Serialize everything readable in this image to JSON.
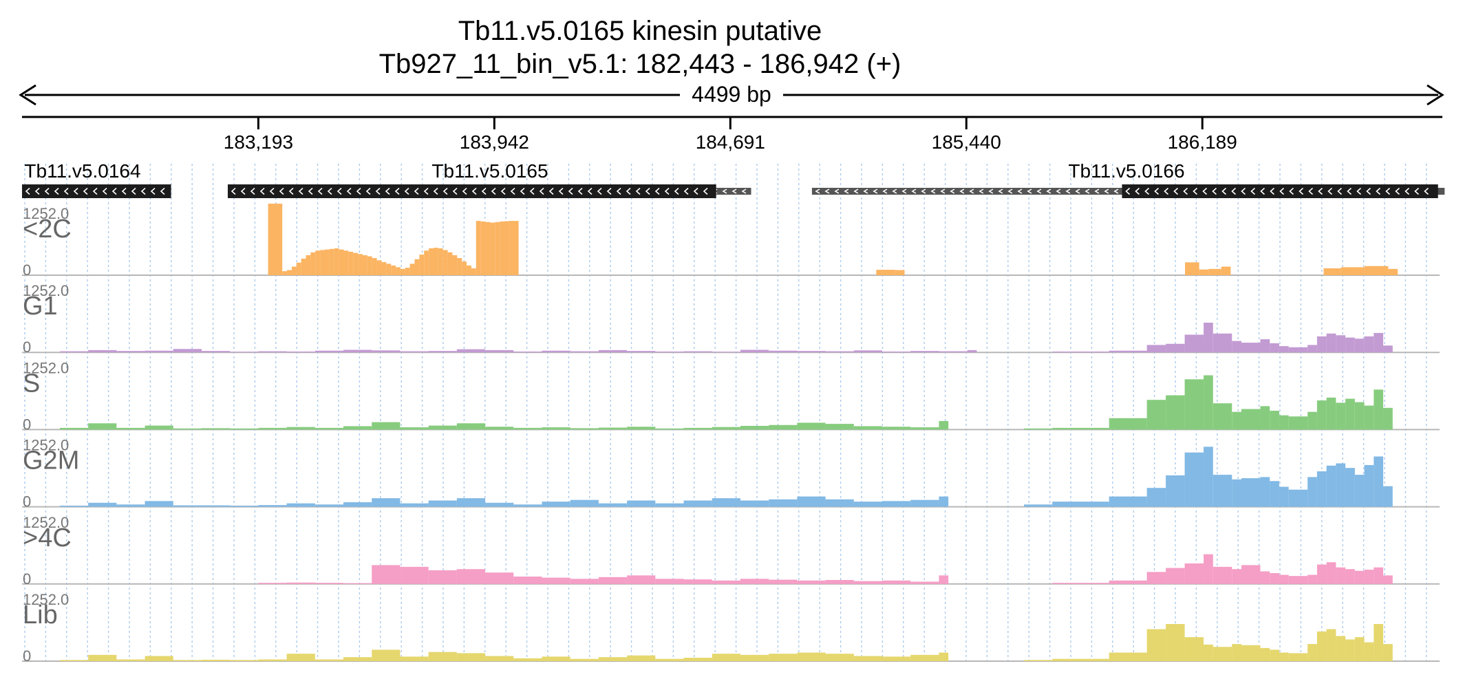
{
  "title": {
    "gene_line": "Tb11.v5.0165  kinesin  putative",
    "locus_line": "Tb927_11_bin_v5.1: 182,443 - 186,942 (+)",
    "span_label": "4499 bp"
  },
  "chart_data": {
    "type": "area",
    "subtype": "genome-browser coverage tracks",
    "chromosome": "Tb927_11_bin_v5.1",
    "x_range": [
      182443,
      186942
    ],
    "x_ticks": [
      183193,
      183942,
      184691,
      185440,
      186189
    ],
    "x_tick_labels": [
      "183,193",
      "183,942",
      "184,691",
      "185,440",
      "186,189"
    ],
    "grid": true,
    "genes": [
      {
        "name": "Tb11.v5.0164",
        "start": 182443,
        "end": 182916,
        "strand": "-",
        "label": "Tb11.v5.0164"
      },
      {
        "name": "Tb11.v5.0165",
        "start": 183096,
        "end": 184646,
        "utr_end": 184757,
        "strand": "-",
        "label": "Tb11.v5.0165"
      },
      {
        "name": "Tb11.v5.0166",
        "start": 185934,
        "end": 186937,
        "utr_start": 184950,
        "utr_end": 186958,
        "strand": "-",
        "label": "Tb11.v5.0166"
      }
    ],
    "bin_width": 15,
    "ylim": [
      0,
      1252.0
    ],
    "series": [
      {
        "name": "<2C",
        "color": "#fbb462",
        "ymax_label": "1252.0",
        "ymin_label": "0",
        "segments": [
          {
            "x": [
              183224,
              183269,
              183284,
              183299,
              183314,
              183329,
              183344,
              183359,
              183374,
              183389,
              183404,
              183419,
              183434,
              183449,
              183464,
              183479,
              183494,
              183509,
              183524,
              183539,
              183554,
              183569,
              183584,
              183599,
              183614,
              183629,
              183644,
              183659,
              183674,
              183689,
              183704,
              183719,
              183734,
              183749,
              183764,
              183779,
              183794,
              183809,
              183824,
              183839,
              183854,
              183869,
              183884,
              183899,
              183914,
              183929,
              183944,
              183959,
              183974,
              183989
            ],
            "y": [
              1252,
              70,
              90,
              150,
              220,
              290,
              350,
              400,
              430,
              440,
              450,
              460,
              470,
              450,
              430,
              410,
              390,
              370,
              350,
              330,
              300,
              260,
              230,
              200,
              170,
              140,
              110,
              130,
              200,
              280,
              360,
              430,
              470,
              480,
              470,
              440,
              400,
              350,
              300,
              240,
              170,
              120,
              950,
              940,
              930,
              920,
              930,
              940,
              945,
              950
            ]
          },
          {
            "x": [
              185154,
              185214
            ],
            "y": [
              95,
              90
            ]
          },
          {
            "x": [
              186134,
              186179,
              186209,
              186249
            ],
            "y": [
              225,
              100,
              110,
              150
            ]
          },
          {
            "x": [
              186574,
              186629,
              186704,
              186779
            ],
            "y": [
              120,
              140,
              160,
              110
            ]
          }
        ]
      },
      {
        "name": "G1",
        "color": "#c39bd3",
        "ymax_label": "1252.0",
        "ymin_label": "0",
        "segments": [
          {
            "x": [
              182563,
              182653,
              182743,
              182833,
              182923,
              183013,
              183103,
              183193,
              183283,
              183373,
              183463,
              183553,
              183643,
              183733,
              183823,
              183913,
              184003,
              184093,
              184183,
              184273,
              184363,
              184453,
              184543,
              184633,
              184723,
              184813,
              184903,
              184993,
              185083,
              185173,
              185263,
              185353,
              185443
            ],
            "y": [
              20,
              40,
              25,
              30,
              60,
              25,
              10,
              20,
              15,
              30,
              45,
              35,
              20,
              25,
              55,
              40,
              15,
              30,
              20,
              40,
              25,
              15,
              20,
              10,
              45,
              30,
              25,
              20,
              35,
              15,
              25,
              20,
              40
            ]
          },
          {
            "x": [
              185713,
              185893,
              186013,
              186073,
              186133,
              186193,
              186223,
              186283,
              186313,
              186373,
              186403,
              186433,
              186463,
              186523,
              186553,
              186583,
              186613,
              186643,
              186673,
              186703,
              186733,
              186763
            ],
            "y": [
              15,
              30,
              130,
              150,
              310,
              520,
              330,
              200,
              170,
              230,
              160,
              110,
              90,
              130,
              280,
              330,
              300,
              260,
              240,
              280,
              340,
              120
            ]
          }
        ]
      },
      {
        "name": "S",
        "color": "#87cc7e",
        "ymax_label": "1252.0",
        "ymin_label": "0",
        "segments": [
          {
            "x": [
              182563,
              182653,
              182743,
              182833,
              182923,
              183013,
              183103,
              183193,
              183283,
              183373,
              183463,
              183553,
              183643,
              183733,
              183823,
              183913,
              184003,
              184093,
              184183,
              184273,
              184363,
              184453,
              184543,
              184633,
              184723,
              184813,
              184903,
              184993,
              185083,
              185173,
              185263,
              185353
            ],
            "y": [
              30,
              110,
              30,
              70,
              20,
              25,
              20,
              30,
              45,
              30,
              60,
              130,
              40,
              70,
              110,
              50,
              30,
              40,
              25,
              35,
              50,
              20,
              30,
              45,
              65,
              80,
              120,
              100,
              60,
              50,
              40,
              150
            ]
          },
          {
            "x": [
              185623,
              185713,
              185893,
              186013,
              186073,
              186133,
              186193,
              186223,
              186283,
              186313,
              186373,
              186403,
              186433,
              186463,
              186523,
              186553,
              186583,
              186613,
              186643,
              186673,
              186703,
              186733,
              186763
            ],
            "y": [
              20,
              30,
              200,
              520,
              600,
              880,
              950,
              460,
              310,
              360,
              410,
              330,
              250,
              230,
              310,
              510,
              560,
              470,
              540,
              480,
              420,
              700,
              380
            ]
          }
        ]
      },
      {
        "name": "G2M",
        "color": "#82b9e5",
        "ymax_label": "1252.0",
        "ymin_label": "0",
        "segments": [
          {
            "x": [
              182563,
              182653,
              182743,
              182833,
              182923,
              183013,
              183103,
              183193,
              183283,
              183373,
              183463,
              183553,
              183643,
              183733,
              183823,
              183913,
              184003,
              184093,
              184183,
              184273,
              184363,
              184453,
              184543,
              184633,
              184723,
              184813,
              184903,
              184993,
              185083,
              185173,
              185263,
              185353
            ],
            "y": [
              20,
              70,
              40,
              100,
              25,
              25,
              20,
              30,
              60,
              40,
              80,
              150,
              60,
              110,
              150,
              70,
              40,
              90,
              120,
              60,
              110,
              60,
              110,
              150,
              110,
              130,
              180,
              130,
              90,
              100,
              120,
              180
            ]
          },
          {
            "x": [
              185623,
              185713,
              185893,
              186013,
              186073,
              186133,
              186193,
              186223,
              186283,
              186313,
              186373,
              186403,
              186433,
              186463,
              186523,
              186553,
              186583,
              186613,
              186643,
              186673,
              186703,
              186733,
              186763
            ],
            "y": [
              40,
              90,
              180,
              330,
              550,
              950,
              1050,
              560,
              480,
              500,
              520,
              450,
              350,
              300,
              520,
              620,
              720,
              760,
              680,
              560,
              730,
              880,
              360
            ]
          }
        ]
      },
      {
        "name": ">4C",
        "color": "#f59ec6",
        "ymax_label": "1252.0",
        "ymin_label": "0",
        "segments": [
          {
            "x": [
              183193,
              183283,
              183373,
              183463,
              183553,
              183643,
              183733,
              183823,
              183913,
              184003,
              184093,
              184183,
              184273,
              184363,
              184453,
              184543,
              184633,
              184723,
              184813,
              184903,
              184993,
              185083,
              185173,
              185263,
              185353
            ],
            "y": [
              20,
              25,
              20,
              15,
              330,
              300,
              240,
              260,
              200,
              130,
              110,
              90,
              120,
              150,
              90,
              80,
              60,
              90,
              75,
              60,
              70,
              50,
              60,
              40,
              150
            ]
          },
          {
            "x": [
              185713,
              185893,
              186013,
              186073,
              186133,
              186193,
              186223,
              186283,
              186313,
              186373,
              186403,
              186433,
              186463,
              186523,
              186553,
              186583,
              186613,
              186643,
              186673,
              186703,
              186733,
              186763
            ],
            "y": [
              20,
              60,
              210,
              280,
              360,
              520,
              300,
              260,
              330,
              220,
              190,
              160,
              140,
              160,
              340,
              380,
              290,
              260,
              230,
              250,
              290,
              150
            ]
          }
        ]
      },
      {
        "name": "Lib",
        "color": "#e5d76d",
        "ymax_label": "1252.0",
        "ymin_label": "0",
        "segments": [
          {
            "x": [
              182563,
              182653,
              182743,
              182833,
              182923,
              183013,
              183103,
              183193,
              183283,
              183373,
              183463,
              183553,
              183643,
              183733,
              183823,
              183913,
              184003,
              184093,
              184183,
              184273,
              184363,
              184453,
              184543,
              184633,
              184723,
              184813,
              184903,
              184993,
              185083,
              185173,
              185263,
              185353
            ],
            "y": [
              20,
              110,
              30,
              90,
              20,
              25,
              20,
              30,
              130,
              30,
              70,
              200,
              80,
              160,
              140,
              90,
              50,
              80,
              40,
              70,
              100,
              40,
              60,
              130,
              110,
              130,
              150,
              130,
              90,
              80,
              110,
              150
            ]
          },
          {
            "x": [
              185623,
              185713,
              185893,
              186013,
              186073,
              186133,
              186193,
              186223,
              186283,
              186313,
              186373,
              186403,
              186433,
              186463,
              186523,
              186553,
              186583,
              186613,
              186643,
              186673,
              186703,
              186733,
              186763
            ],
            "y": [
              20,
              40,
              150,
              560,
              650,
              420,
              290,
              250,
              300,
              280,
              230,
              200,
              150,
              140,
              300,
              520,
              560,
              440,
              380,
              420,
              330,
              650,
              300
            ]
          }
        ]
      }
    ]
  }
}
